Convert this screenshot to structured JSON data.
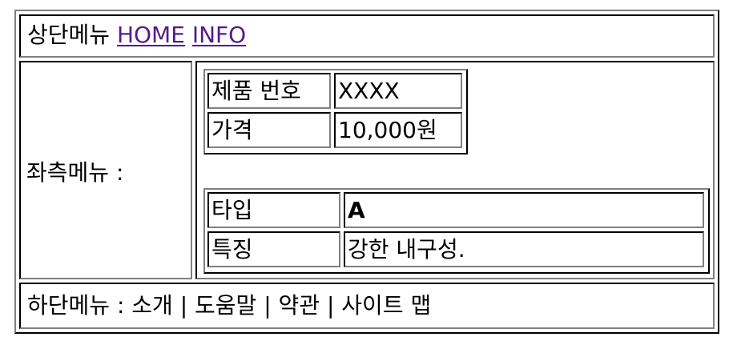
{
  "top_menu": {
    "label": "상단메뉴",
    "links": [
      "HOME",
      "INFO"
    ]
  },
  "left_menu": {
    "label": "좌측메뉴 :"
  },
  "product_table": {
    "rows": [
      {
        "key": "제품 번호",
        "value": "XXXX"
      },
      {
        "key": "가격",
        "value": "10,000원"
      }
    ]
  },
  "spec_table": {
    "rows": [
      {
        "key": "타입",
        "value": "A"
      },
      {
        "key": "특징",
        "value": "강한 내구성."
      }
    ]
  },
  "bottom_menu": {
    "text": "하단메뉴 : 소개 | 도움말 | 약관 | 사이트 맵"
  },
  "colors": {
    "link": "#551a8b",
    "border_light": "#808080",
    "border_dark": "#000000"
  }
}
